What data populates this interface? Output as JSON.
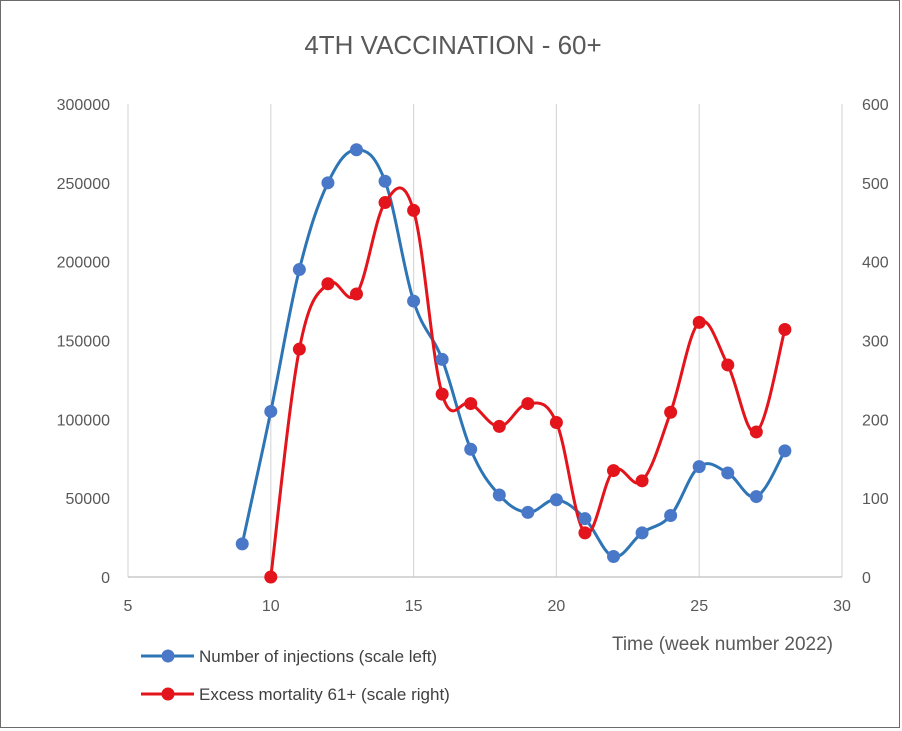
{
  "chart_data": {
    "type": "line",
    "title": "4TH VACCINATION - 60+",
    "xlabel": "Time (week number 2022)",
    "xlim": [
      5,
      30
    ],
    "x_ticks": [
      "5",
      "10",
      "15",
      "20",
      "25",
      "30"
    ],
    "ylim_left": [
      0,
      300000
    ],
    "y_ticks_left": [
      "0",
      "50000",
      "100000",
      "150000",
      "200000",
      "250000",
      "300000"
    ],
    "ylim_right": [
      0,
      600
    ],
    "y_ticks_right": [
      "0",
      "100",
      "200",
      "300",
      "400",
      "500",
      "600"
    ],
    "grid": "vertical",
    "legend_position": "bottom-left",
    "series": [
      {
        "name": "Number of injections (scale left)",
        "axis": "left",
        "color": "#2e75b6",
        "x": [
          9,
          10,
          11,
          12,
          13,
          14,
          15,
          16,
          17,
          18,
          19,
          20,
          21,
          22,
          23,
          24,
          25,
          26,
          27,
          28
        ],
        "y": [
          21000,
          105000,
          195000,
          250000,
          271000,
          251000,
          175000,
          138000,
          81000,
          52000,
          41000,
          49000,
          37000,
          13000,
          28000,
          39000,
          70000,
          66000,
          51000,
          80000
        ]
      },
      {
        "name": "Excess mortality 61+ (scale right)",
        "axis": "right",
        "color": "#e3141b",
        "x": [
          10,
          11,
          12,
          13,
          14,
          15,
          16,
          17,
          18,
          19,
          20,
          21,
          22,
          23,
          24,
          25,
          26,
          27,
          28
        ],
        "y": [
          0,
          289,
          372,
          359,
          475,
          465,
          232,
          220,
          191,
          220,
          196,
          56,
          135,
          122,
          209,
          323,
          269,
          184,
          314
        ]
      }
    ]
  }
}
